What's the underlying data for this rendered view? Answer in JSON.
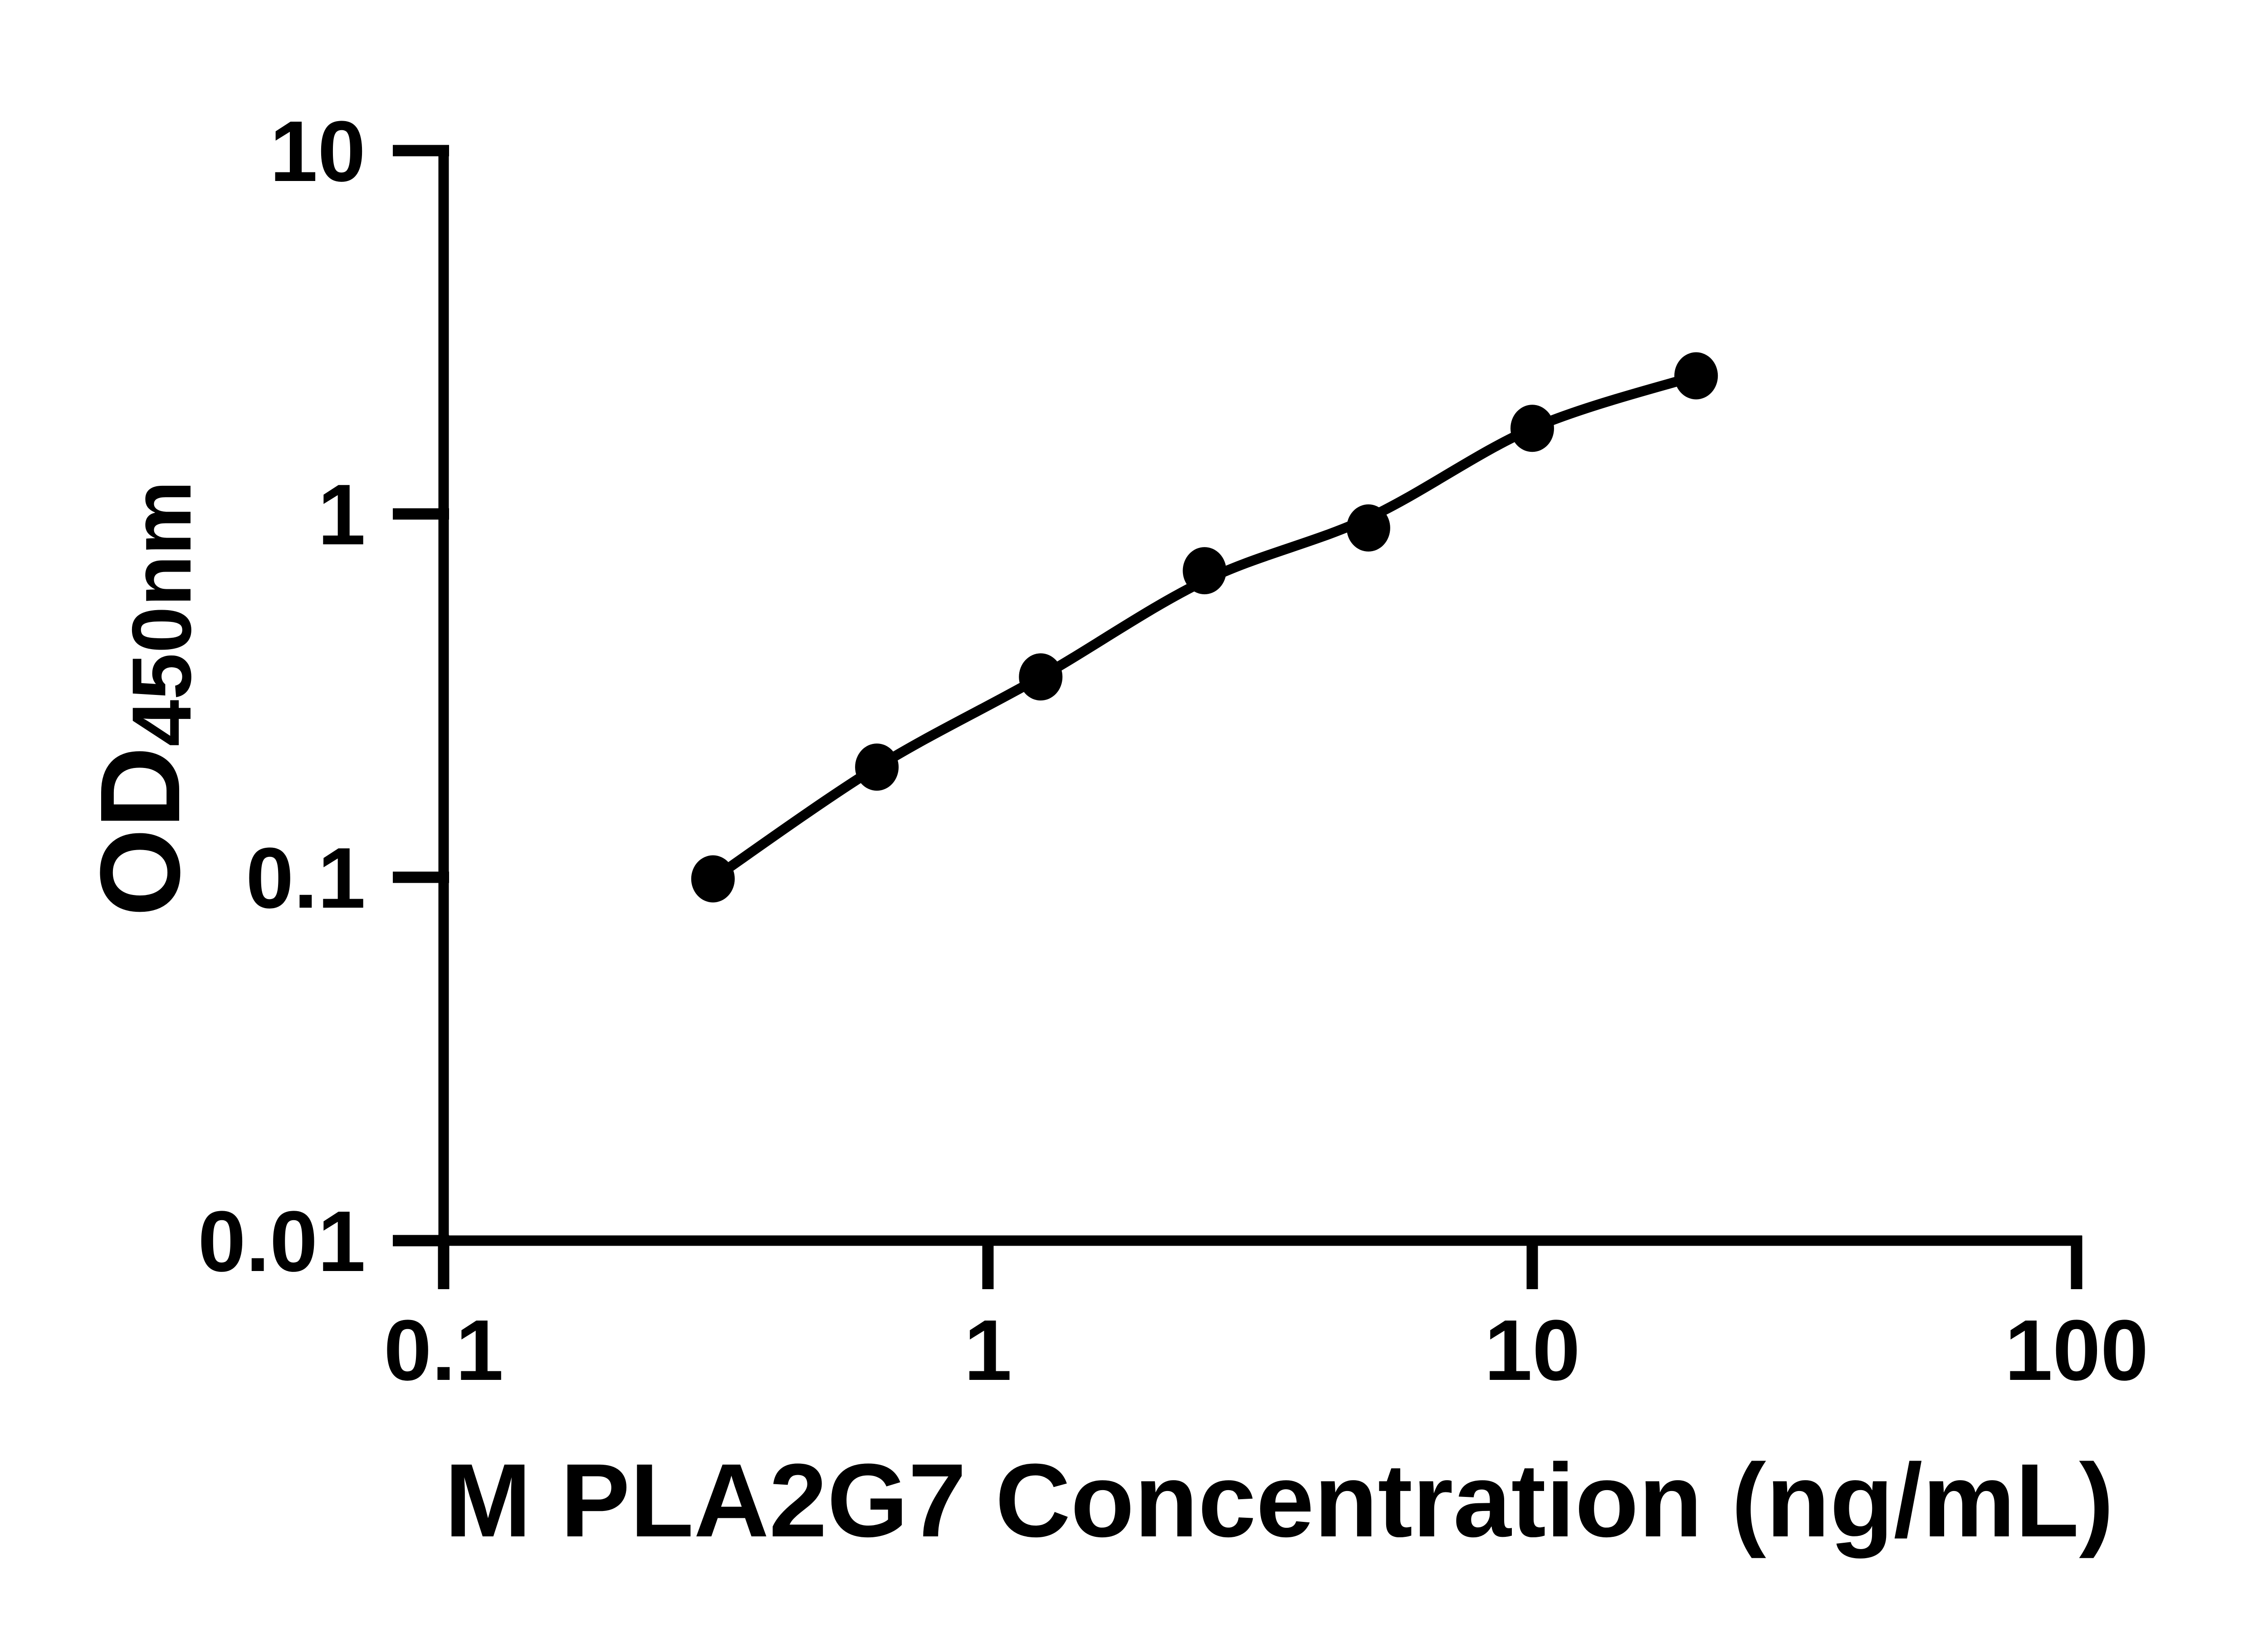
{
  "colors": {
    "background": "#ffffff",
    "foreground": "#000000"
  },
  "chart_data": {
    "type": "scatter",
    "title": "",
    "xlabel": "M PLA2G7 Concentration (ng/mL)",
    "ylabel_main": "OD",
    "ylabel_sub": "450nm",
    "x_scale": "log10",
    "y_scale": "log10",
    "xlim": [
      0.1,
      100
    ],
    "ylim": [
      0.01,
      10
    ],
    "grid": false,
    "legend_position": "none",
    "x_ticks": [
      {
        "value": 0.1,
        "label": "0.1"
      },
      {
        "value": 1,
        "label": "1"
      },
      {
        "value": 10,
        "label": "10"
      },
      {
        "value": 100,
        "label": "100"
      }
    ],
    "y_ticks": [
      {
        "value": 0.01,
        "label": "0.01"
      },
      {
        "value": 0.1,
        "label": "0.1"
      },
      {
        "value": 1,
        "label": "1"
      },
      {
        "value": 10,
        "label": "10"
      }
    ],
    "series": [
      {
        "name": "standard-points",
        "marker": "filled-circle",
        "color": "#000000",
        "points": [
          {
            "x": 0.3125,
            "y": 0.099
          },
          {
            "x": 0.625,
            "y": 0.201
          },
          {
            "x": 1.25,
            "y": 0.356
          },
          {
            "x": 2.5,
            "y": 0.698
          },
          {
            "x": 5,
            "y": 0.915
          },
          {
            "x": 10,
            "y": 1.72
          },
          {
            "x": 20,
            "y": 2.4
          }
        ]
      }
    ],
    "fit_curve": {
      "name": "fitted-standard-curve",
      "color": "#000000",
      "anchors": [
        {
          "x": 0.3125,
          "y": 0.099
        },
        {
          "x": 0.625,
          "y": 0.201
        },
        {
          "x": 1.25,
          "y": 0.356
        },
        {
          "x": 2.5,
          "y": 0.655
        },
        {
          "x": 5,
          "y": 0.975
        },
        {
          "x": 10,
          "y": 1.72
        },
        {
          "x": 20,
          "y": 2.4
        }
      ]
    }
  }
}
